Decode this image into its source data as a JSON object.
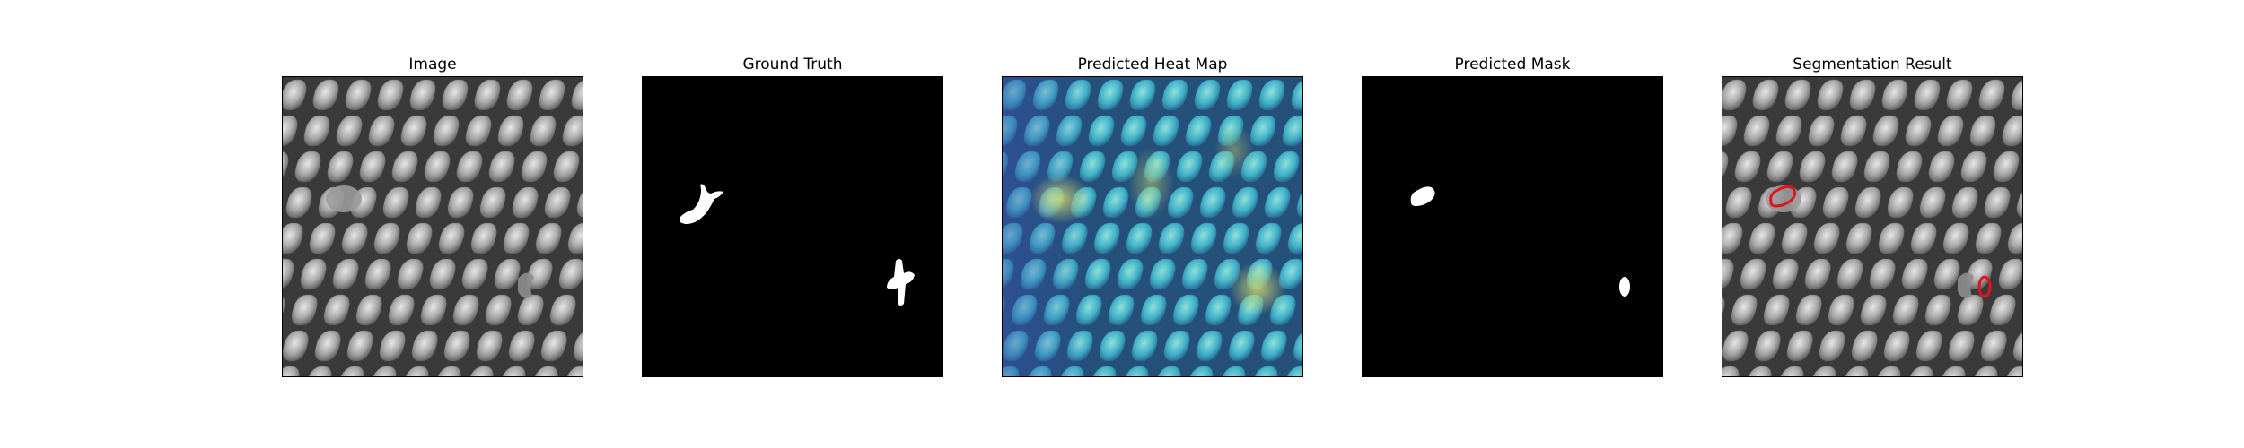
{
  "panels": [
    {
      "id": "image",
      "title": "Image"
    },
    {
      "id": "ground-truth",
      "title": "Ground Truth"
    },
    {
      "id": "heat-map",
      "title": "Predicted Heat Map"
    },
    {
      "id": "predicted-mask",
      "title": "Predicted Mask"
    },
    {
      "id": "segmentation-result",
      "title": "Segmentation Result"
    }
  ],
  "colors": {
    "background": "#ffffff",
    "mask_background": "#000000",
    "mask_foreground": "#ffffff",
    "contour": "#e0141e",
    "texture_dark": "#3a3a3a",
    "texture_light": "#b8b8b8"
  }
}
